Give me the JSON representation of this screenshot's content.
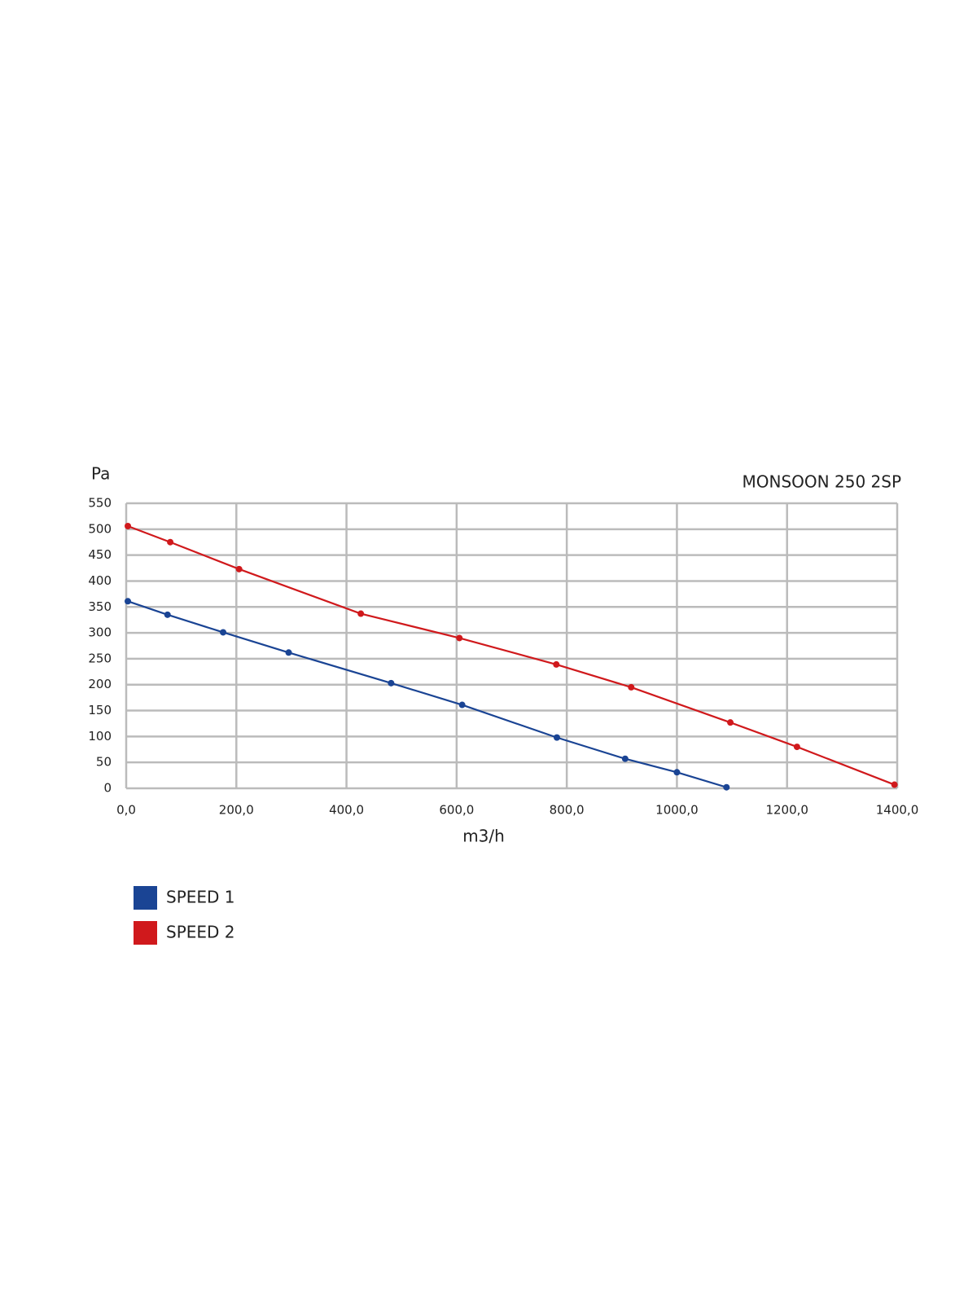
{
  "chart_data": {
    "type": "line",
    "title": "MONSOON 250 2SP",
    "ylabel": "Pa",
    "xlabel": "m3/h",
    "xlim": [
      0,
      1400
    ],
    "xticks": [
      {
        "value": 0,
        "label": "0,0"
      },
      {
        "value": 200,
        "label": "200,0"
      },
      {
        "value": 400,
        "label": "400,0"
      },
      {
        "value": 600,
        "label": "600,0"
      },
      {
        "value": 800,
        "label": "800,0"
      },
      {
        "value": 1000,
        "label": "1000,0"
      },
      {
        "value": 1200,
        "label": "1200,0"
      },
      {
        "value": 1400,
        "label": "1400,0"
      }
    ],
    "ylim": [
      0,
      550
    ],
    "yticks": [
      0,
      50,
      100,
      150,
      200,
      250,
      300,
      350,
      400,
      450,
      500,
      550
    ],
    "grid": true,
    "legend": "bottom-left",
    "series": [
      {
        "name": "SPEED 1",
        "color": "#1a4494",
        "x": [
          3,
          75,
          176,
          295,
          481,
          610,
          782,
          906,
          1000,
          1090
        ],
        "values": [
          361,
          335,
          301,
          262,
          203,
          161,
          98,
          57,
          31,
          2
        ]
      },
      {
        "name": "SPEED 2",
        "color": "#d0191c",
        "x": [
          3,
          80,
          205,
          426,
          605,
          781,
          917,
          1097,
          1218,
          1395
        ],
        "values": [
          506,
          475,
          423,
          337,
          290,
          239,
          195,
          127,
          80,
          7
        ]
      }
    ]
  }
}
